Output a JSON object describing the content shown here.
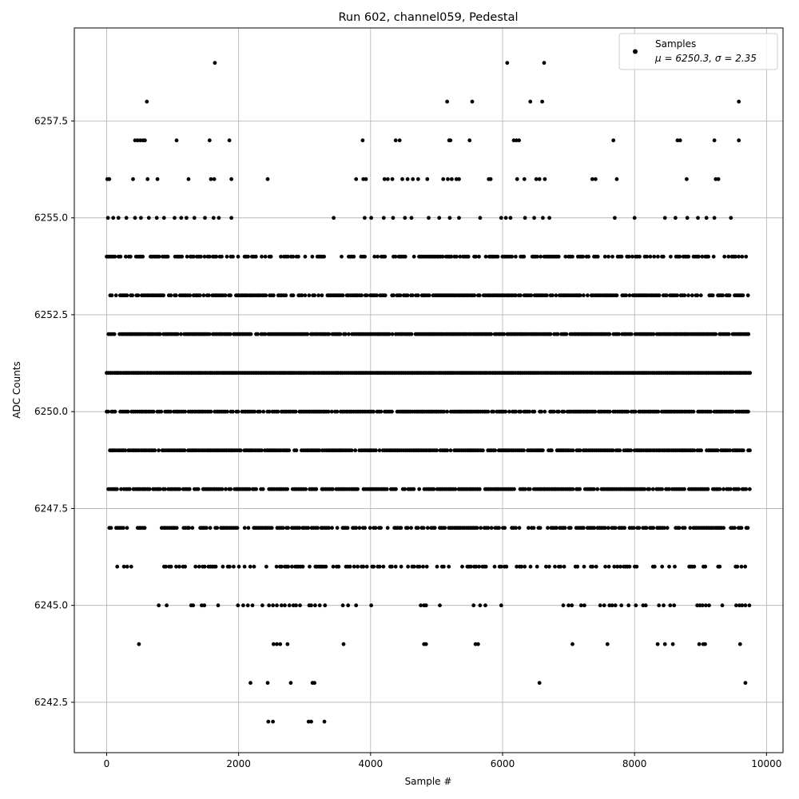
{
  "chart_data": {
    "type": "scatter",
    "title": "Run 602, channel059, Pedestal",
    "xlabel": "Sample #",
    "ylabel": "ADC Counts",
    "xlim": [
      -490,
      10250
    ],
    "ylim": [
      6241.2,
      6259.9
    ],
    "xticks": [
      0,
      2000,
      4000,
      6000,
      8000,
      10000
    ],
    "xtick_labels": [
      "0",
      "2000",
      "4000",
      "6000",
      "8000",
      "10000"
    ],
    "yticks": [
      6242.5,
      6245.0,
      6247.5,
      6250.0,
      6252.5,
      6255.0,
      6257.5
    ],
    "ytick_labels": [
      "6242.5",
      "6245.0",
      "6247.5",
      "6250.0",
      "6252.5",
      "6255.0",
      "6257.5"
    ],
    "grid": true,
    "legend_position": "top-right",
    "marker_color": "#000000",
    "series": [
      {
        "name": "Samples",
        "label_line2": "μ = 6250.3, σ = 2.35",
        "points": [
          [
            1640,
            6259
          ],
          [
            6070,
            6259
          ],
          [
            6630,
            6259
          ],
          [
            610,
            6258
          ],
          [
            5160,
            6258
          ],
          [
            5540,
            6258
          ],
          [
            6420,
            6258
          ],
          [
            6600,
            6258
          ],
          [
            9580,
            6258
          ],
          [
            430,
            6257
          ],
          [
            470,
            6257
          ],
          [
            510,
            6257
          ],
          [
            550,
            6257
          ],
          [
            580,
            6257
          ],
          [
            1060,
            6257
          ],
          [
            1560,
            6257
          ],
          [
            1860,
            6257
          ],
          [
            3880,
            6257
          ],
          [
            4380,
            6257
          ],
          [
            4440,
            6257
          ],
          [
            5190,
            6257
          ],
          [
            5210,
            6257
          ],
          [
            5500,
            6257
          ],
          [
            6170,
            6257
          ],
          [
            6210,
            6257
          ],
          [
            6250,
            6257
          ],
          [
            7680,
            6257
          ],
          [
            8650,
            6257
          ],
          [
            8690,
            6257
          ],
          [
            9210,
            6257
          ],
          [
            9580,
            6257
          ],
          [
            10,
            6256
          ],
          [
            40,
            6256
          ],
          [
            400,
            6256
          ],
          [
            620,
            6256
          ],
          [
            770,
            6256
          ],
          [
            1240,
            6256
          ],
          [
            1580,
            6256
          ],
          [
            1630,
            6256
          ],
          [
            1890,
            6256
          ],
          [
            2440,
            6256
          ],
          [
            3780,
            6256
          ],
          [
            3890,
            6256
          ],
          [
            3930,
            6256
          ],
          [
            4210,
            6256
          ],
          [
            4260,
            6256
          ],
          [
            4330,
            6256
          ],
          [
            4480,
            6256
          ],
          [
            4560,
            6256
          ],
          [
            4640,
            6256
          ],
          [
            4720,
            6256
          ],
          [
            4860,
            6256
          ],
          [
            5100,
            6256
          ],
          [
            5170,
            6256
          ],
          [
            5230,
            6256
          ],
          [
            5300,
            6256
          ],
          [
            5340,
            6256
          ],
          [
            5790,
            6256
          ],
          [
            5820,
            6256
          ],
          [
            6220,
            6256
          ],
          [
            6330,
            6256
          ],
          [
            6510,
            6256
          ],
          [
            6560,
            6256
          ],
          [
            6640,
            6256
          ],
          [
            7360,
            6256
          ],
          [
            7410,
            6256
          ],
          [
            7730,
            6256
          ],
          [
            8790,
            6256
          ],
          [
            9230,
            6256
          ],
          [
            9270,
            6256
          ],
          [
            20,
            6255
          ],
          [
            100,
            6255
          ],
          [
            180,
            6255
          ],
          [
            300,
            6255
          ],
          [
            430,
            6255
          ],
          [
            520,
            6255
          ],
          [
            640,
            6255
          ],
          [
            760,
            6255
          ],
          [
            870,
            6255
          ],
          [
            1030,
            6255
          ],
          [
            1130,
            6255
          ],
          [
            1210,
            6255
          ],
          [
            1330,
            6255
          ],
          [
            1490,
            6255
          ],
          [
            1620,
            6255
          ],
          [
            1700,
            6255
          ],
          [
            1890,
            6255
          ],
          [
            3440,
            6255
          ],
          [
            3910,
            6255
          ],
          [
            4010,
            6255
          ],
          [
            4200,
            6255
          ],
          [
            4340,
            6255
          ],
          [
            4520,
            6255
          ],
          [
            4620,
            6255
          ],
          [
            4880,
            6255
          ],
          [
            5040,
            6255
          ],
          [
            5200,
            6255
          ],
          [
            5340,
            6255
          ],
          [
            5660,
            6255
          ],
          [
            5980,
            6255
          ],
          [
            6050,
            6255
          ],
          [
            6120,
            6255
          ],
          [
            6340,
            6255
          ],
          [
            6480,
            6255
          ],
          [
            6610,
            6255
          ],
          [
            6710,
            6255
          ],
          [
            7700,
            6255
          ],
          [
            8000,
            6255
          ],
          [
            8460,
            6255
          ],
          [
            8620,
            6255
          ],
          [
            8800,
            6255
          ],
          [
            8960,
            6255
          ],
          [
            9090,
            6255
          ],
          [
            9210,
            6255
          ],
          [
            9460,
            6255
          ]
        ],
        "dense_rows": [
          {
            "y": 6254,
            "density": 0.55,
            "ranges": [
              [
                0,
                2010
              ],
              [
                2090,
                2520
              ],
              [
                2640,
                3300
              ],
              [
                3560,
                9750
              ]
            ]
          },
          {
            "y": 6253,
            "density": 0.75,
            "ranges": [
              [
                0,
                9750
              ]
            ]
          },
          {
            "y": 6252,
            "density": 0.9,
            "ranges": [
              [
                0,
                9750
              ]
            ]
          },
          {
            "y": 6251,
            "density": 1.0,
            "ranges": [
              [
                0,
                9750
              ]
            ]
          },
          {
            "y": 6250,
            "density": 0.85,
            "ranges": [
              [
                0,
                9750
              ]
            ]
          },
          {
            "y": 6249,
            "density": 0.9,
            "ranges": [
              [
                50,
                9750
              ]
            ]
          },
          {
            "y": 6248,
            "density": 0.8,
            "ranges": [
              [
                0,
                9750
              ]
            ]
          },
          {
            "y": 6247,
            "density": 0.7,
            "ranges": [
              [
                40,
                320
              ],
              [
                470,
                600
              ],
              [
                810,
                9750
              ]
            ]
          },
          {
            "y": 6246,
            "density": 0.4,
            "ranges": [
              [
                160,
                380
              ],
              [
                760,
                9750
              ]
            ]
          }
        ],
        "sparse_low": [
          [
            790,
            6245
          ],
          [
            910,
            6245
          ],
          [
            1280,
            6245
          ],
          [
            1310,
            6245
          ],
          [
            1440,
            6245
          ],
          [
            1480,
            6245
          ],
          [
            1690,
            6245
          ],
          [
            1990,
            6245
          ],
          [
            2070,
            6245
          ],
          [
            2140,
            6245
          ],
          [
            2210,
            6245
          ],
          [
            2360,
            6245
          ],
          [
            2460,
            6245
          ],
          [
            2520,
            6245
          ],
          [
            2580,
            6245
          ],
          [
            2650,
            6245
          ],
          [
            2700,
            6245
          ],
          [
            2770,
            6245
          ],
          [
            2830,
            6245
          ],
          [
            2870,
            6245
          ],
          [
            2930,
            6245
          ],
          [
            3070,
            6245
          ],
          [
            3100,
            6245
          ],
          [
            3160,
            6245
          ],
          [
            3230,
            6245
          ],
          [
            3310,
            6245
          ],
          [
            3580,
            6245
          ],
          [
            3660,
            6245
          ],
          [
            3780,
            6245
          ],
          [
            4010,
            6245
          ],
          [
            4760,
            6245
          ],
          [
            4810,
            6245
          ],
          [
            4840,
            6245
          ],
          [
            5050,
            6245
          ],
          [
            5560,
            6245
          ],
          [
            5660,
            6245
          ],
          [
            5740,
            6245
          ],
          [
            5980,
            6245
          ],
          [
            6920,
            6245
          ],
          [
            7000,
            6245
          ],
          [
            7050,
            6245
          ],
          [
            7190,
            6245
          ],
          [
            7240,
            6245
          ],
          [
            7480,
            6245
          ],
          [
            7540,
            6245
          ],
          [
            7620,
            6245
          ],
          [
            7660,
            6245
          ],
          [
            7710,
            6245
          ],
          [
            7800,
            6245
          ],
          [
            7910,
            6245
          ],
          [
            8020,
            6245
          ],
          [
            8130,
            6245
          ],
          [
            8170,
            6245
          ],
          [
            8370,
            6245
          ],
          [
            8440,
            6245
          ],
          [
            8540,
            6245
          ],
          [
            8600,
            6245
          ],
          [
            8950,
            6245
          ],
          [
            8990,
            6245
          ],
          [
            9030,
            6245
          ],
          [
            9080,
            6245
          ],
          [
            9130,
            6245
          ],
          [
            9330,
            6245
          ],
          [
            9540,
            6245
          ],
          [
            9590,
            6245
          ],
          [
            9630,
            6245
          ],
          [
            9680,
            6245
          ],
          [
            9740,
            6245
          ],
          [
            490,
            6244
          ],
          [
            2530,
            6244
          ],
          [
            2580,
            6244
          ],
          [
            2630,
            6244
          ],
          [
            2740,
            6244
          ],
          [
            3590,
            6244
          ],
          [
            4810,
            6244
          ],
          [
            4840,
            6244
          ],
          [
            5590,
            6244
          ],
          [
            5630,
            6244
          ],
          [
            7060,
            6244
          ],
          [
            7590,
            6244
          ],
          [
            8350,
            6244
          ],
          [
            8460,
            6244
          ],
          [
            8580,
            6244
          ],
          [
            8980,
            6244
          ],
          [
            9040,
            6244
          ],
          [
            9070,
            6244
          ],
          [
            9600,
            6244
          ],
          [
            2180,
            6243
          ],
          [
            2440,
            6243
          ],
          [
            2790,
            6243
          ],
          [
            3120,
            6243
          ],
          [
            3150,
            6243
          ],
          [
            6560,
            6243
          ],
          [
            9680,
            6243
          ],
          [
            2450,
            6242
          ],
          [
            2520,
            6242
          ],
          [
            3060,
            6242
          ],
          [
            3100,
            6242
          ],
          [
            3300,
            6242
          ]
        ]
      }
    ]
  }
}
